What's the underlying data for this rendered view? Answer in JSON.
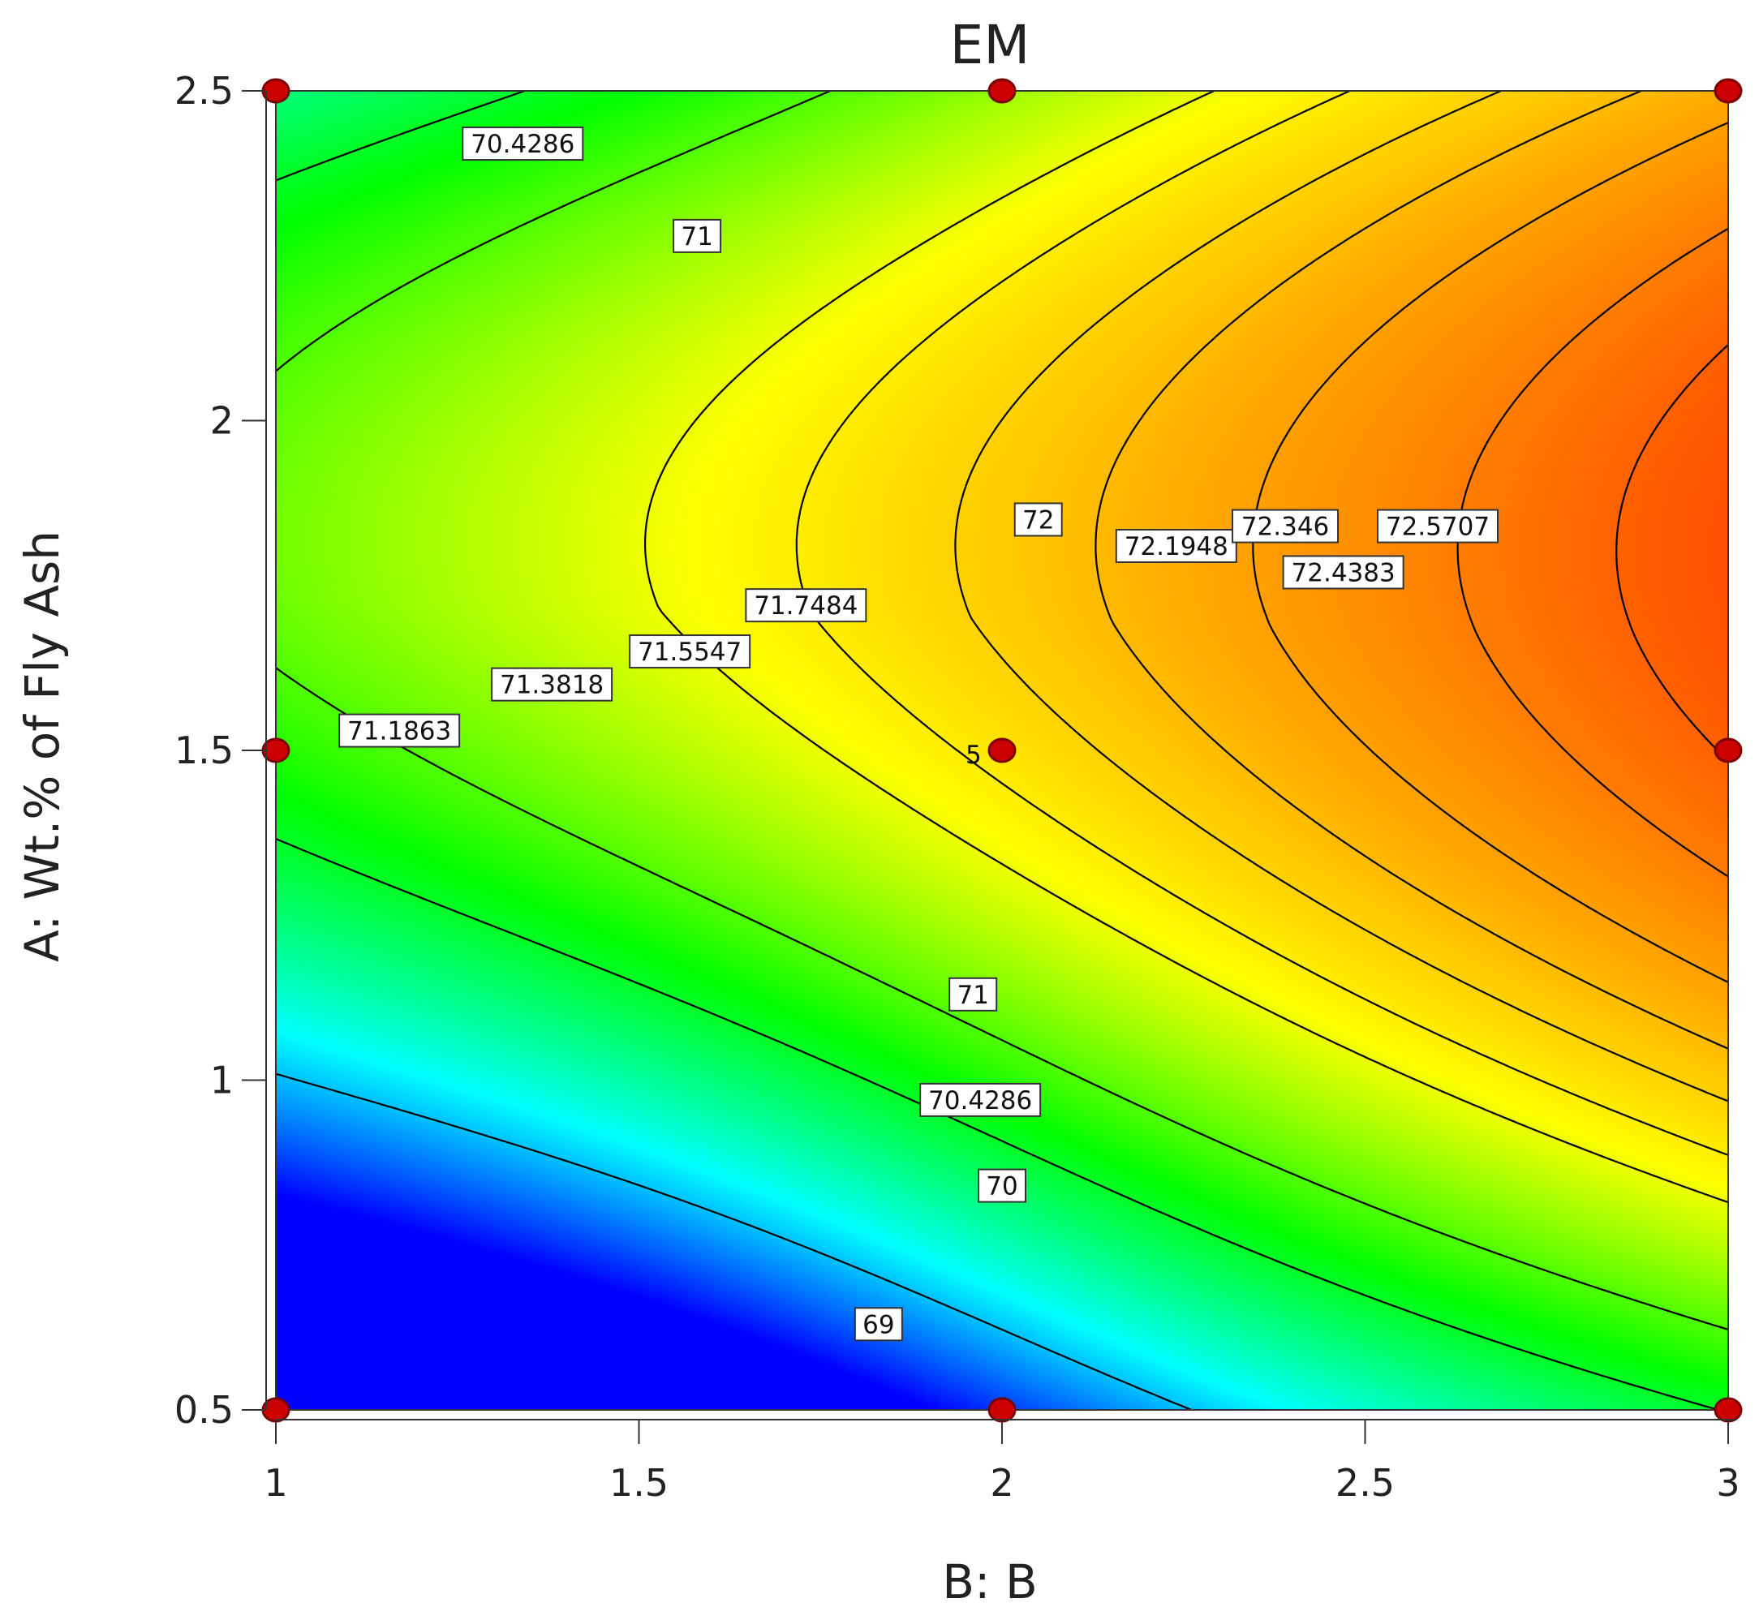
{
  "chart_data": {
    "type": "contour",
    "title": "EM",
    "xlabel": "B: B",
    "ylabel": "A: Wt.% of Fly Ash",
    "xlim": [
      1,
      3
    ],
    "ylim": [
      0.5,
      2.5
    ],
    "x_ticks": [
      "1",
      "1.5",
      "2",
      "2.5",
      "3"
    ],
    "y_ticks": [
      "0.5",
      "1",
      "1.5",
      "2",
      "2.5"
    ],
    "colormap": [
      "#0000ff",
      "#00ffff",
      "#00ff00",
      "#ffff00",
      "#ff8000",
      "#ff0000"
    ],
    "value_range": [
      68.3,
      72.9
    ],
    "contour_levels": [
      {
        "value": 69,
        "label": "69",
        "label_at": [
          1.83,
          0.63
        ]
      },
      {
        "value": 70,
        "label": "70",
        "label_at": [
          2.0,
          0.84
        ]
      },
      {
        "value": 70.4286,
        "label": "70.4286",
        "label_at": [
          1.97,
          0.97
        ]
      },
      {
        "value": 70.4286,
        "label": "70.4286",
        "label_at": [
          1.34,
          2.42
        ]
      },
      {
        "value": 71,
        "label": "71",
        "label_at": [
          1.96,
          1.13
        ]
      },
      {
        "value": 71,
        "label": "71",
        "label_at": [
          1.58,
          2.28
        ]
      },
      {
        "value": 71.1863,
        "label": "71.1863",
        "label_at": [
          1.17,
          1.53
        ]
      },
      {
        "value": 71.3818,
        "label": "71.3818",
        "label_at": [
          1.38,
          1.6
        ]
      },
      {
        "value": 71.5547,
        "label": "71.5547",
        "label_at": [
          1.57,
          1.65
        ]
      },
      {
        "value": 71.7484,
        "label": "71.7484",
        "label_at": [
          1.73,
          1.72
        ]
      },
      {
        "value": 72,
        "label": "72",
        "label_at": [
          2.05,
          1.85
        ]
      },
      {
        "value": 72.1948,
        "label": "72.1948",
        "label_at": [
          2.24,
          1.81
        ]
      },
      {
        "value": 72.346,
        "label": "72.346",
        "label_at": [
          2.39,
          1.84
        ]
      },
      {
        "value": 72.4383,
        "label": "72.4383",
        "label_at": [
          2.47,
          1.77
        ]
      },
      {
        "value": 72.5707,
        "label": "72.5707",
        "label_at": [
          2.6,
          1.84
        ]
      }
    ],
    "design_points": [
      {
        "x": 1,
        "y": 2.5
      },
      {
        "x": 2,
        "y": 2.5
      },
      {
        "x": 3,
        "y": 2.5
      },
      {
        "x": 1,
        "y": 1.5
      },
      {
        "x": 2,
        "y": 1.5,
        "label": "5"
      },
      {
        "x": 3,
        "y": 1.5
      },
      {
        "x": 1,
        "y": 0.5
      },
      {
        "x": 2,
        "y": 0.5
      },
      {
        "x": 3,
        "y": 0.5
      }
    ],
    "grid": false,
    "legend": "none"
  }
}
